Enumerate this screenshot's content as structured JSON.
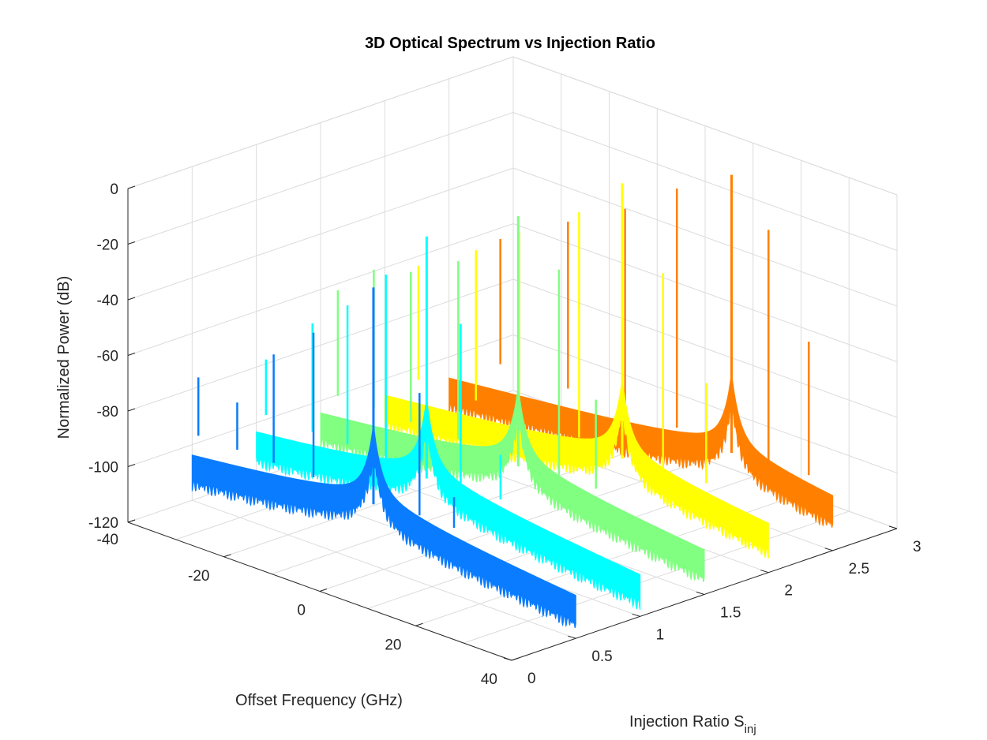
{
  "chart_data": {
    "type": "line3d",
    "title": "3D Optical Spectrum vs Injection Ratio",
    "xlabel": "Offset Frequency (GHz)",
    "ylabel": "Injection Ratio S",
    "ylabel_sub": "inj",
    "zlabel": "Normalized Power (dB)",
    "xlim": [
      -40,
      40
    ],
    "ylim": [
      0,
      3
    ],
    "zlim": [
      -120,
      0
    ],
    "x_ticks": [
      "-40",
      "-20",
      "0",
      "20",
      "40"
    ],
    "y_ticks": [
      "0",
      "0.5",
      "1",
      "1.5",
      "2",
      "2.5",
      "3"
    ],
    "z_ticks": [
      "0",
      "-20",
      "-40",
      "-60",
      "-80",
      "-100",
      "-120"
    ],
    "grid": true,
    "series": [
      {
        "injection_ratio": 0.5,
        "color": "#0a7cff",
        "peak_freq_ghz": -2.2,
        "peak_db": -20,
        "floor_db": -100,
        "sidebands": [
          {
            "freq_ghz": -38.7,
            "db": -75
          },
          {
            "freq_ghz": -30.6,
            "db": -79
          },
          {
            "freq_ghz": -23.0,
            "db": -57
          },
          {
            "freq_ghz": -14.7,
            "db": -44
          },
          {
            "freq_ghz": 7.4,
            "db": -52
          },
          {
            "freq_ghz": 14.6,
            "db": -85
          }
        ]
      },
      {
        "injection_ratio": 1.0,
        "color": "#00ffff",
        "peak_freq_ghz": -4.5,
        "peak_db": -11,
        "floor_db": -100,
        "sidebands": [
          {
            "freq_ghz": -38.0,
            "db": -76
          },
          {
            "freq_ghz": -28.3,
            "db": -57
          },
          {
            "freq_ghz": -21.0,
            "db": -46
          },
          {
            "freq_ghz": -13.0,
            "db": -30
          },
          {
            "freq_ghz": 2.6,
            "db": -38
          },
          {
            "freq_ghz": 10.9,
            "db": -80
          }
        ]
      },
      {
        "injection_ratio": 1.5,
        "color": "#80ff80",
        "peak_freq_ghz": 1.2,
        "peak_db": -8,
        "floor_db": -100,
        "sidebands": [
          {
            "freq_ghz": -36.4,
            "db": -58
          },
          {
            "freq_ghz": -28.9,
            "db": -46
          },
          {
            "freq_ghz": -21.2,
            "db": -42
          },
          {
            "freq_ghz": -11.3,
            "db": -32
          },
          {
            "freq_ghz": 9.7,
            "db": -22
          },
          {
            "freq_ghz": 17.4,
            "db": -64
          }
        ]
      },
      {
        "injection_ratio": 2.0,
        "color": "#ffff00",
        "peak_freq_ghz": 9.5,
        "peak_db": 1,
        "floor_db": -100,
        "sidebands": [
          {
            "freq_ghz": -33.0,
            "db": -55
          },
          {
            "freq_ghz": -21.0,
            "db": -42
          },
          {
            "freq_ghz": -12.0,
            "db": -30
          },
          {
            "freq_ghz": 0.5,
            "db": -15
          },
          {
            "freq_ghz": 18.0,
            "db": -26
          },
          {
            "freq_ghz": 27.0,
            "db": -60
          }
        ]
      },
      {
        "injection_ratio": 2.5,
        "color": "#ff8000",
        "peak_freq_ghz": 18.9,
        "peak_db": 2,
        "floor_db": -100,
        "sidebands": [
          {
            "freq_ghz": -29.3,
            "db": -51
          },
          {
            "freq_ghz": -15.2,
            "db": -36
          },
          {
            "freq_ghz": -3.3,
            "db": -24
          },
          {
            "freq_ghz": 7.5,
            "db": -10
          },
          {
            "freq_ghz": 26.6,
            "db": -13
          },
          {
            "freq_ghz": 35.0,
            "db": -48
          }
        ]
      }
    ]
  }
}
